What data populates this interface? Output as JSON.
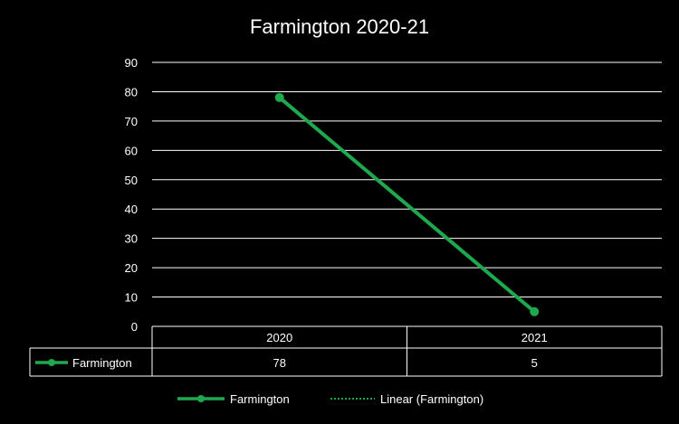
{
  "chart_data": {
    "type": "line",
    "title": "Farmington 2020-21",
    "categories": [
      "2020",
      "2021"
    ],
    "series": [
      {
        "name": "Farmington",
        "values": [
          78,
          5
        ]
      }
    ],
    "trendline": {
      "name": "Linear (Farmington)",
      "type": "linear",
      "style": "dotted"
    },
    "ylim": [
      0,
      90
    ],
    "yticks": [
      0,
      10,
      20,
      30,
      40,
      50,
      60,
      70,
      80,
      90
    ],
    "grid": true,
    "data_table": true,
    "legend_position": "bottom",
    "colors": {
      "series": "#1fa94f",
      "background": "#000000",
      "text": "#ffffff",
      "grid": "#ffffff"
    }
  }
}
